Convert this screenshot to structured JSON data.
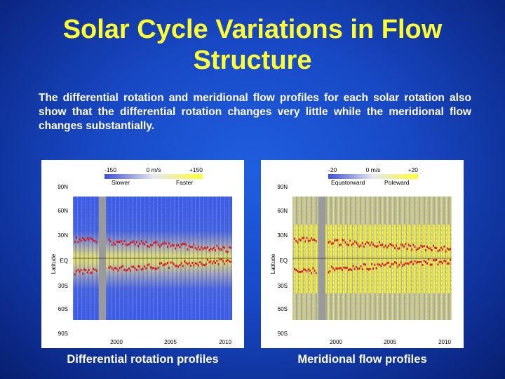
{
  "slide": {
    "title": "Solar Cycle Variations in Flow Structure",
    "body": "The differential rotation and meridional flow profiles for each solar rotation also show that the differential rotation changes very little while the meridional flow changes substantially."
  },
  "panels": [
    {
      "caption": "Differential rotation profiles",
      "colorbar": {
        "min_label": "-150",
        "mid_label": "0 m/s",
        "max_label": "+150",
        "low_side": "Slower",
        "high_side": "Faster"
      },
      "ylabel": "Latitude",
      "y_ticks": [
        "90N",
        "60N",
        "30N",
        "EQ",
        "30S",
        "60S",
        "90S"
      ],
      "x_ticks": [
        "2000",
        "2005",
        "2010"
      ]
    },
    {
      "caption": "Meridional flow profiles",
      "colorbar": {
        "min_label": "-20",
        "mid_label": "0 m/s",
        "max_label": "+20",
        "low_side": "Equatorward",
        "high_side": "Poleward"
      },
      "ylabel": "Latitude",
      "y_ticks": [
        "90N",
        "60N",
        "30N",
        "EQ",
        "30S",
        "60S",
        "90S"
      ],
      "x_ticks": [
        "2000",
        "2005",
        "2010"
      ]
    }
  ],
  "colors": {
    "background": "#1848c4",
    "title": "#ffff33",
    "text": "#ffffff",
    "faster": "#ffff40",
    "slower": "#3d5fe0",
    "gap": "#9a9a9a",
    "belt": "#dd1111"
  }
}
